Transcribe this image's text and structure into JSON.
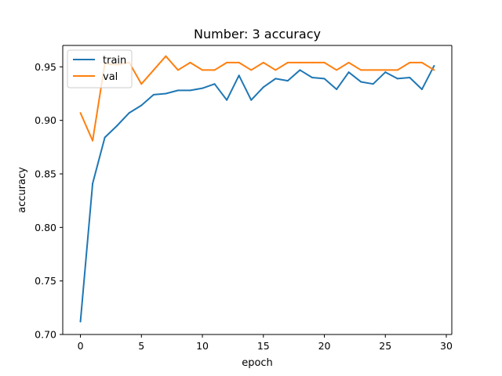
{
  "chart_data": {
    "type": "line",
    "title": "Number: 3 accuracy",
    "xlabel": "epoch",
    "ylabel": "accuracy",
    "xlim": [
      -1.45,
      30.45
    ],
    "ylim": [
      0.7,
      0.97
    ],
    "xticks": [
      0,
      5,
      10,
      15,
      20,
      25,
      30
    ],
    "xtick_labels": [
      "0",
      "5",
      "10",
      "15",
      "20",
      "25",
      "30"
    ],
    "yticks": [
      0.7,
      0.75,
      0.8,
      0.85,
      0.9,
      0.95
    ],
    "ytick_labels": [
      "0.70",
      "0.75",
      "0.80",
      "0.85",
      "0.90",
      "0.95"
    ],
    "grid": false,
    "legend_position": "upper-left",
    "x": [
      0,
      1,
      2,
      3,
      4,
      5,
      6,
      7,
      8,
      9,
      10,
      11,
      12,
      13,
      14,
      15,
      16,
      17,
      18,
      19,
      20,
      21,
      22,
      23,
      24,
      25,
      26,
      27,
      28,
      29
    ],
    "series": [
      {
        "name": "train",
        "color": "#1f77b4",
        "values": [
          0.712,
          0.841,
          0.884,
          0.895,
          0.907,
          0.914,
          0.924,
          0.925,
          0.928,
          0.928,
          0.93,
          0.934,
          0.919,
          0.942,
          0.919,
          0.931,
          0.939,
          0.937,
          0.947,
          0.94,
          0.939,
          0.929,
          0.945,
          0.936,
          0.934,
          0.945,
          0.939,
          0.94,
          0.929,
          0.951
        ]
      },
      {
        "name": "val",
        "color": "#ff7f0e",
        "values": [
          0.907,
          0.881,
          0.953,
          0.952,
          0.954,
          0.934,
          0.947,
          0.96,
          0.947,
          0.954,
          0.947,
          0.947,
          0.954,
          0.954,
          0.947,
          0.954,
          0.947,
          0.954,
          0.954,
          0.954,
          0.954,
          0.947,
          0.954,
          0.947,
          0.947,
          0.947,
          0.947,
          0.954,
          0.954,
          0.947
        ]
      }
    ]
  }
}
